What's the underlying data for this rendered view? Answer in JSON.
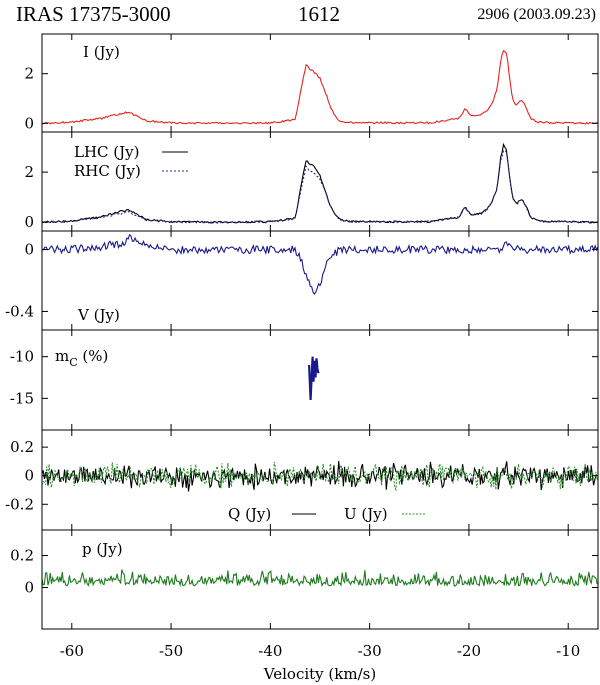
{
  "header": {
    "source": "IRAS 17375-3000",
    "frequency": "1612",
    "epoch": "2906 (2003.09.23)"
  },
  "chart_data": [
    {
      "type": "line",
      "panel": "I",
      "label": "I (Jy)",
      "xlim": [
        -63,
        -7
      ],
      "ylim": [
        -0.35,
        3.6
      ],
      "yticks": [
        0,
        2
      ],
      "ytick_labels": [
        "0",
        "2"
      ],
      "series": [
        {
          "color": "#e8231e",
          "x": [
            -63,
            -60,
            -57,
            -55.5,
            -54.3,
            -53.5,
            -52.5,
            -50,
            -45,
            -40,
            -37.5,
            -36.8,
            -36.4,
            -36.0,
            -35.5,
            -35.0,
            -34.5,
            -34.0,
            -33.5,
            -33.0,
            -32,
            -28,
            -24,
            -21,
            -20.4,
            -20.1,
            -19.8,
            -19.3,
            -18.8,
            -18.2,
            -17.7,
            -17.2,
            -16.8,
            -16.5,
            -16.2,
            -15.9,
            -15.6,
            -15.2,
            -14.9,
            -14.6,
            -14.2,
            -13.8,
            -13,
            -11,
            -7
          ],
          "y": [
            0.0,
            0.05,
            0.2,
            0.35,
            0.45,
            0.3,
            0.1,
            0.02,
            0.0,
            0.02,
            0.15,
            1.6,
            2.35,
            2.2,
            2.05,
            1.8,
            1.3,
            0.7,
            0.3,
            0.1,
            0.03,
            0.02,
            0.02,
            0.2,
            0.6,
            0.45,
            0.3,
            0.3,
            0.35,
            0.5,
            0.8,
            1.3,
            2.5,
            3.0,
            2.8,
            1.8,
            1.0,
            0.7,
            0.9,
            0.9,
            0.6,
            0.2,
            0.05,
            0.02,
            0.0
          ]
        }
      ]
    },
    {
      "type": "line",
      "panel": "LHC-RHC",
      "xlim": [
        -63,
        -7
      ],
      "ylim": [
        -0.35,
        3.6
      ],
      "yticks": [
        0,
        2
      ],
      "ytick_labels": [
        "0",
        "2"
      ],
      "legend": [
        "LHC (Jy)",
        "RHC (Jy)"
      ],
      "series": [
        {
          "name": "LHC (Jy)",
          "color": "#000000",
          "dash": "",
          "x": [
            -63,
            -60,
            -57,
            -55.5,
            -54.3,
            -53.5,
            -52.5,
            -50,
            -45,
            -40,
            -37.5,
            -36.8,
            -36.4,
            -36.0,
            -35.5,
            -35.0,
            -34.5,
            -34.0,
            -33.5,
            -33.0,
            -32,
            -28,
            -24,
            -21,
            -20.4,
            -20.1,
            -19.8,
            -19.3,
            -18.8,
            -18.2,
            -17.7,
            -17.2,
            -16.8,
            -16.5,
            -16.2,
            -15.9,
            -15.6,
            -15.2,
            -14.9,
            -14.6,
            -14.2,
            -13.8,
            -13,
            -11,
            -7
          ],
          "y": [
            0.0,
            0.05,
            0.22,
            0.38,
            0.5,
            0.32,
            0.1,
            0.02,
            0.0,
            0.02,
            0.15,
            1.7,
            2.45,
            2.35,
            2.2,
            1.85,
            1.3,
            0.7,
            0.3,
            0.1,
            0.03,
            0.02,
            0.02,
            0.2,
            0.62,
            0.45,
            0.3,
            0.3,
            0.35,
            0.5,
            0.8,
            1.3,
            2.55,
            3.1,
            2.85,
            1.8,
            1.0,
            0.7,
            0.9,
            0.9,
            0.6,
            0.2,
            0.05,
            0.02,
            0.0
          ]
        },
        {
          "name": "RHC (Jy)",
          "color": "#2b2b9a",
          "dash": "2,2",
          "x": [
            -63,
            -60,
            -57,
            -55.5,
            -54.3,
            -53.5,
            -52.5,
            -50,
            -45,
            -40,
            -37.5,
            -36.8,
            -36.4,
            -36.0,
            -35.5,
            -35.0,
            -34.5,
            -34.0,
            -33.5,
            -33.0,
            -32,
            -28,
            -24,
            -21,
            -20.4,
            -20.1,
            -19.8,
            -19.3,
            -18.8,
            -18.2,
            -17.7,
            -17.2,
            -16.8,
            -16.5,
            -16.2,
            -15.9,
            -15.6,
            -15.2,
            -14.9,
            -14.6,
            -14.2,
            -13.8,
            -13,
            -11,
            -7
          ],
          "y": [
            0.0,
            0.05,
            0.2,
            0.32,
            0.42,
            0.28,
            0.1,
            0.02,
            0.0,
            0.02,
            0.15,
            1.5,
            2.2,
            2.05,
            1.9,
            1.7,
            1.25,
            0.7,
            0.3,
            0.1,
            0.03,
            0.02,
            0.02,
            0.2,
            0.6,
            0.45,
            0.3,
            0.3,
            0.35,
            0.5,
            0.8,
            1.3,
            2.45,
            2.9,
            2.75,
            1.8,
            1.0,
            0.7,
            0.9,
            0.9,
            0.6,
            0.2,
            0.05,
            0.02,
            0.0
          ]
        }
      ]
    },
    {
      "type": "line",
      "panel": "V",
      "label": "V (Jy)",
      "xlim": [
        -63,
        -7
      ],
      "ylim": [
        -0.52,
        0.12
      ],
      "yticks": [
        0,
        -0.4
      ],
      "ytick_labels": [
        "0",
        "-0.4"
      ],
      "series": [
        {
          "color": "#1a1a8c",
          "x": [
            -63,
            -60,
            -57,
            -55,
            -54,
            -53,
            -50,
            -45,
            -40,
            -37.5,
            -37,
            -36.5,
            -36.0,
            -35.5,
            -35.0,
            -34.5,
            -34.0,
            -33,
            -30,
            -25,
            -20,
            -17,
            -16.5,
            -16,
            -15,
            -10,
            -7
          ],
          "y": [
            0.0,
            0.0,
            0.02,
            0.04,
            0.08,
            0.04,
            0.0,
            0.0,
            0.0,
            0.0,
            -0.05,
            -0.14,
            -0.24,
            -0.3,
            -0.22,
            -0.12,
            -0.05,
            0.0,
            0.0,
            0.0,
            0.0,
            0.0,
            0.03,
            0.04,
            0.0,
            0.0,
            0.0
          ]
        }
      ]
    },
    {
      "type": "line",
      "panel": "mC",
      "label": "m",
      "label_sub": "C",
      "label_suffix": " (%)",
      "xlim": [
        -63,
        -7
      ],
      "ylim": [
        -18.8,
        -6.8
      ],
      "yticks": [
        -10,
        -15
      ],
      "ytick_labels": [
        "-10",
        "-15"
      ],
      "series": [
        {
          "color": "#1a1a8c",
          "x": [
            -36.1,
            -35.95,
            -35.85,
            -35.75,
            -35.65,
            -35.55,
            -35.45,
            -35.35,
            -35.25,
            -35.15
          ],
          "y": [
            -11.0,
            -15.2,
            -12.5,
            -10.0,
            -13.0,
            -10.5,
            -12.5,
            -10.2,
            -11.5,
            -12.0
          ]
        }
      ]
    },
    {
      "type": "line",
      "panel": "QU",
      "xlim": [
        -63,
        -7
      ],
      "ylim": [
        -0.38,
        0.32
      ],
      "yticks": [
        0.2,
        0,
        -0.2
      ],
      "ytick_labels": [
        "0.2",
        "0",
        "-0.2"
      ],
      "legend": [
        "Q (Jy)",
        "U (Jy)"
      ],
      "series": [
        {
          "name": "Q (Jy)",
          "color": "#000000",
          "dash": "",
          "noise": 0.06,
          "seed": 11
        },
        {
          "name": "U (Jy)",
          "color": "#2f8f2f",
          "dash": "2,1.5",
          "noise": 0.06,
          "seed": 29
        }
      ]
    },
    {
      "type": "line",
      "panel": "p",
      "label": "p (Jy)",
      "xlim": [
        -63,
        -7
      ],
      "ylim": [
        -0.26,
        0.36
      ],
      "yticks": [
        0.2,
        0
      ],
      "ytick_labels": [
        "0.2",
        "0"
      ],
      "series": [
        {
          "color": "#1e7a1e",
          "dash": "",
          "noise": 0.05,
          "seed": 53,
          "positive": true
        }
      ]
    }
  ],
  "x_axis": {
    "label": "Velocity (km/s)",
    "ticks": [
      -60,
      -50,
      -40,
      -30,
      -20,
      -10
    ],
    "tick_labels": [
      "-60",
      "-50",
      "-40",
      "-30",
      "-20",
      "-10"
    ]
  }
}
